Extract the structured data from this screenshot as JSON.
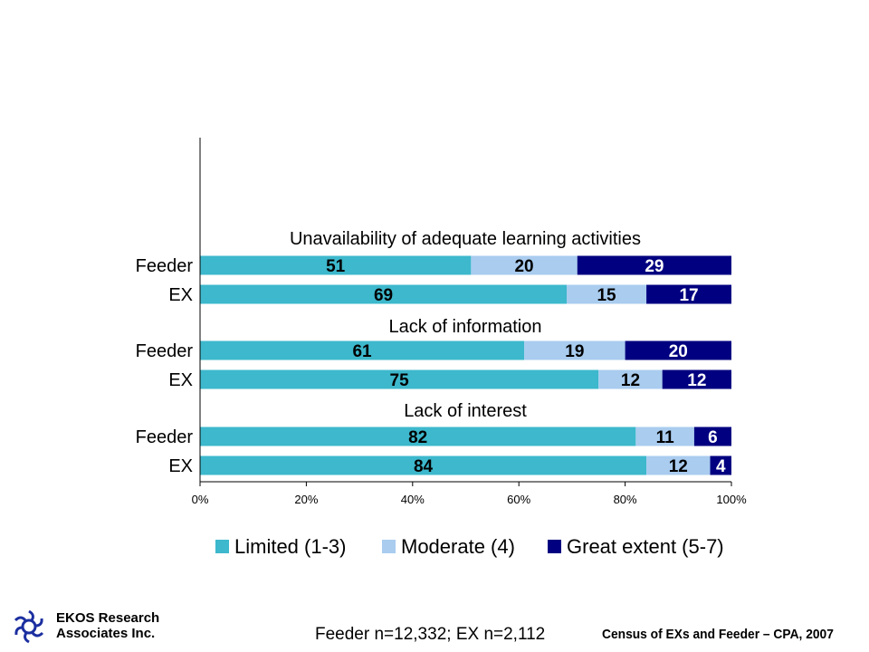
{
  "chart_data": {
    "type": "bar",
    "orientation": "horizontal",
    "stacked": true,
    "groups": [
      {
        "title": "Unavailability of adequate learning activities",
        "rows": [
          {
            "label": "Feeder",
            "values": [
              51,
              20,
              29
            ]
          },
          {
            "label": "EX",
            "values": [
              69,
              15,
              17
            ]
          }
        ]
      },
      {
        "title": "Lack of information",
        "rows": [
          {
            "label": "Feeder",
            "values": [
              61,
              19,
              20
            ]
          },
          {
            "label": "EX",
            "values": [
              75,
              12,
              12
            ]
          }
        ]
      },
      {
        "title": "Lack of interest",
        "rows": [
          {
            "label": "Feeder",
            "values": [
              82,
              11,
              6
            ]
          },
          {
            "label": "EX",
            "values": [
              84,
              12,
              4
            ]
          }
        ]
      }
    ],
    "series": [
      {
        "name": "Limited (1-3)",
        "color": "#3db8cc"
      },
      {
        "name": "Moderate (4)",
        "color": "#a9ccef"
      },
      {
        "name": "Great extent (5-7)",
        "color": "#000080"
      }
    ],
    "xlim": [
      0,
      100
    ],
    "xticks": [
      "0%",
      "20%",
      "40%",
      "60%",
      "80%",
      "100%"
    ],
    "legend_position": "bottom",
    "grid": false
  },
  "footer": {
    "sample_note": "Feeder n=12,332; EX n=2,112",
    "source_note": "Census of EXs and Feeder – CPA, 2007",
    "company_line1": "EKOS Research",
    "company_line2": "Associates Inc.",
    "logo_icon": "ekos-logo-icon"
  }
}
